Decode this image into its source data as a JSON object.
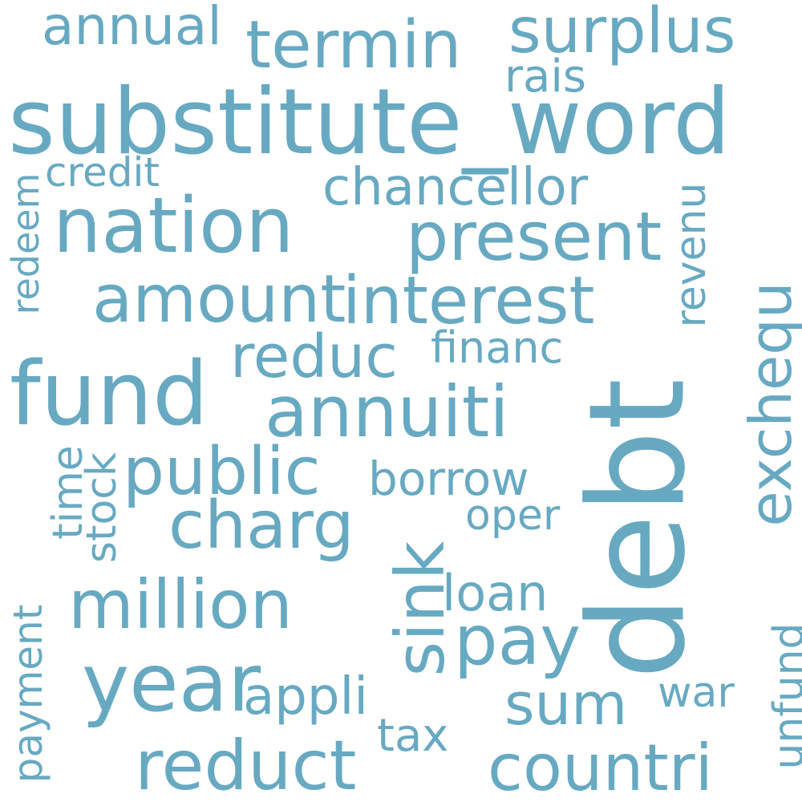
{
  "palette": {
    "word_color": "#68a9c2",
    "background": "#ffffff"
  },
  "words": {
    "annual": "annual",
    "termin": "termin",
    "surplus": "surplus",
    "rais": "rais",
    "substitute_word": "substitute_word",
    "credit": "credit",
    "redeem": "redeem",
    "chancellor": "chancellor",
    "nation": "nation",
    "present": "present",
    "revenu": "revenu",
    "amount": "amount",
    "interest": "interest",
    "exchequ": "exchequ",
    "reduc": "reduc",
    "financ": "financ",
    "fund": "fund",
    "annuiti": "annuiti",
    "debt": "debt",
    "time": "time",
    "stock": "stock",
    "public": "public",
    "borrow": "borrow",
    "charg": "charg",
    "sink": "sink",
    "oper": "oper",
    "million": "million",
    "loan": "loan",
    "payment": "payment",
    "pay": "pay",
    "year": "year",
    "unfund": "unfund",
    "war": "war",
    "appli": "appli",
    "sum": "sum",
    "tax": "tax",
    "reduct": "reduct",
    "countri": "countri"
  }
}
